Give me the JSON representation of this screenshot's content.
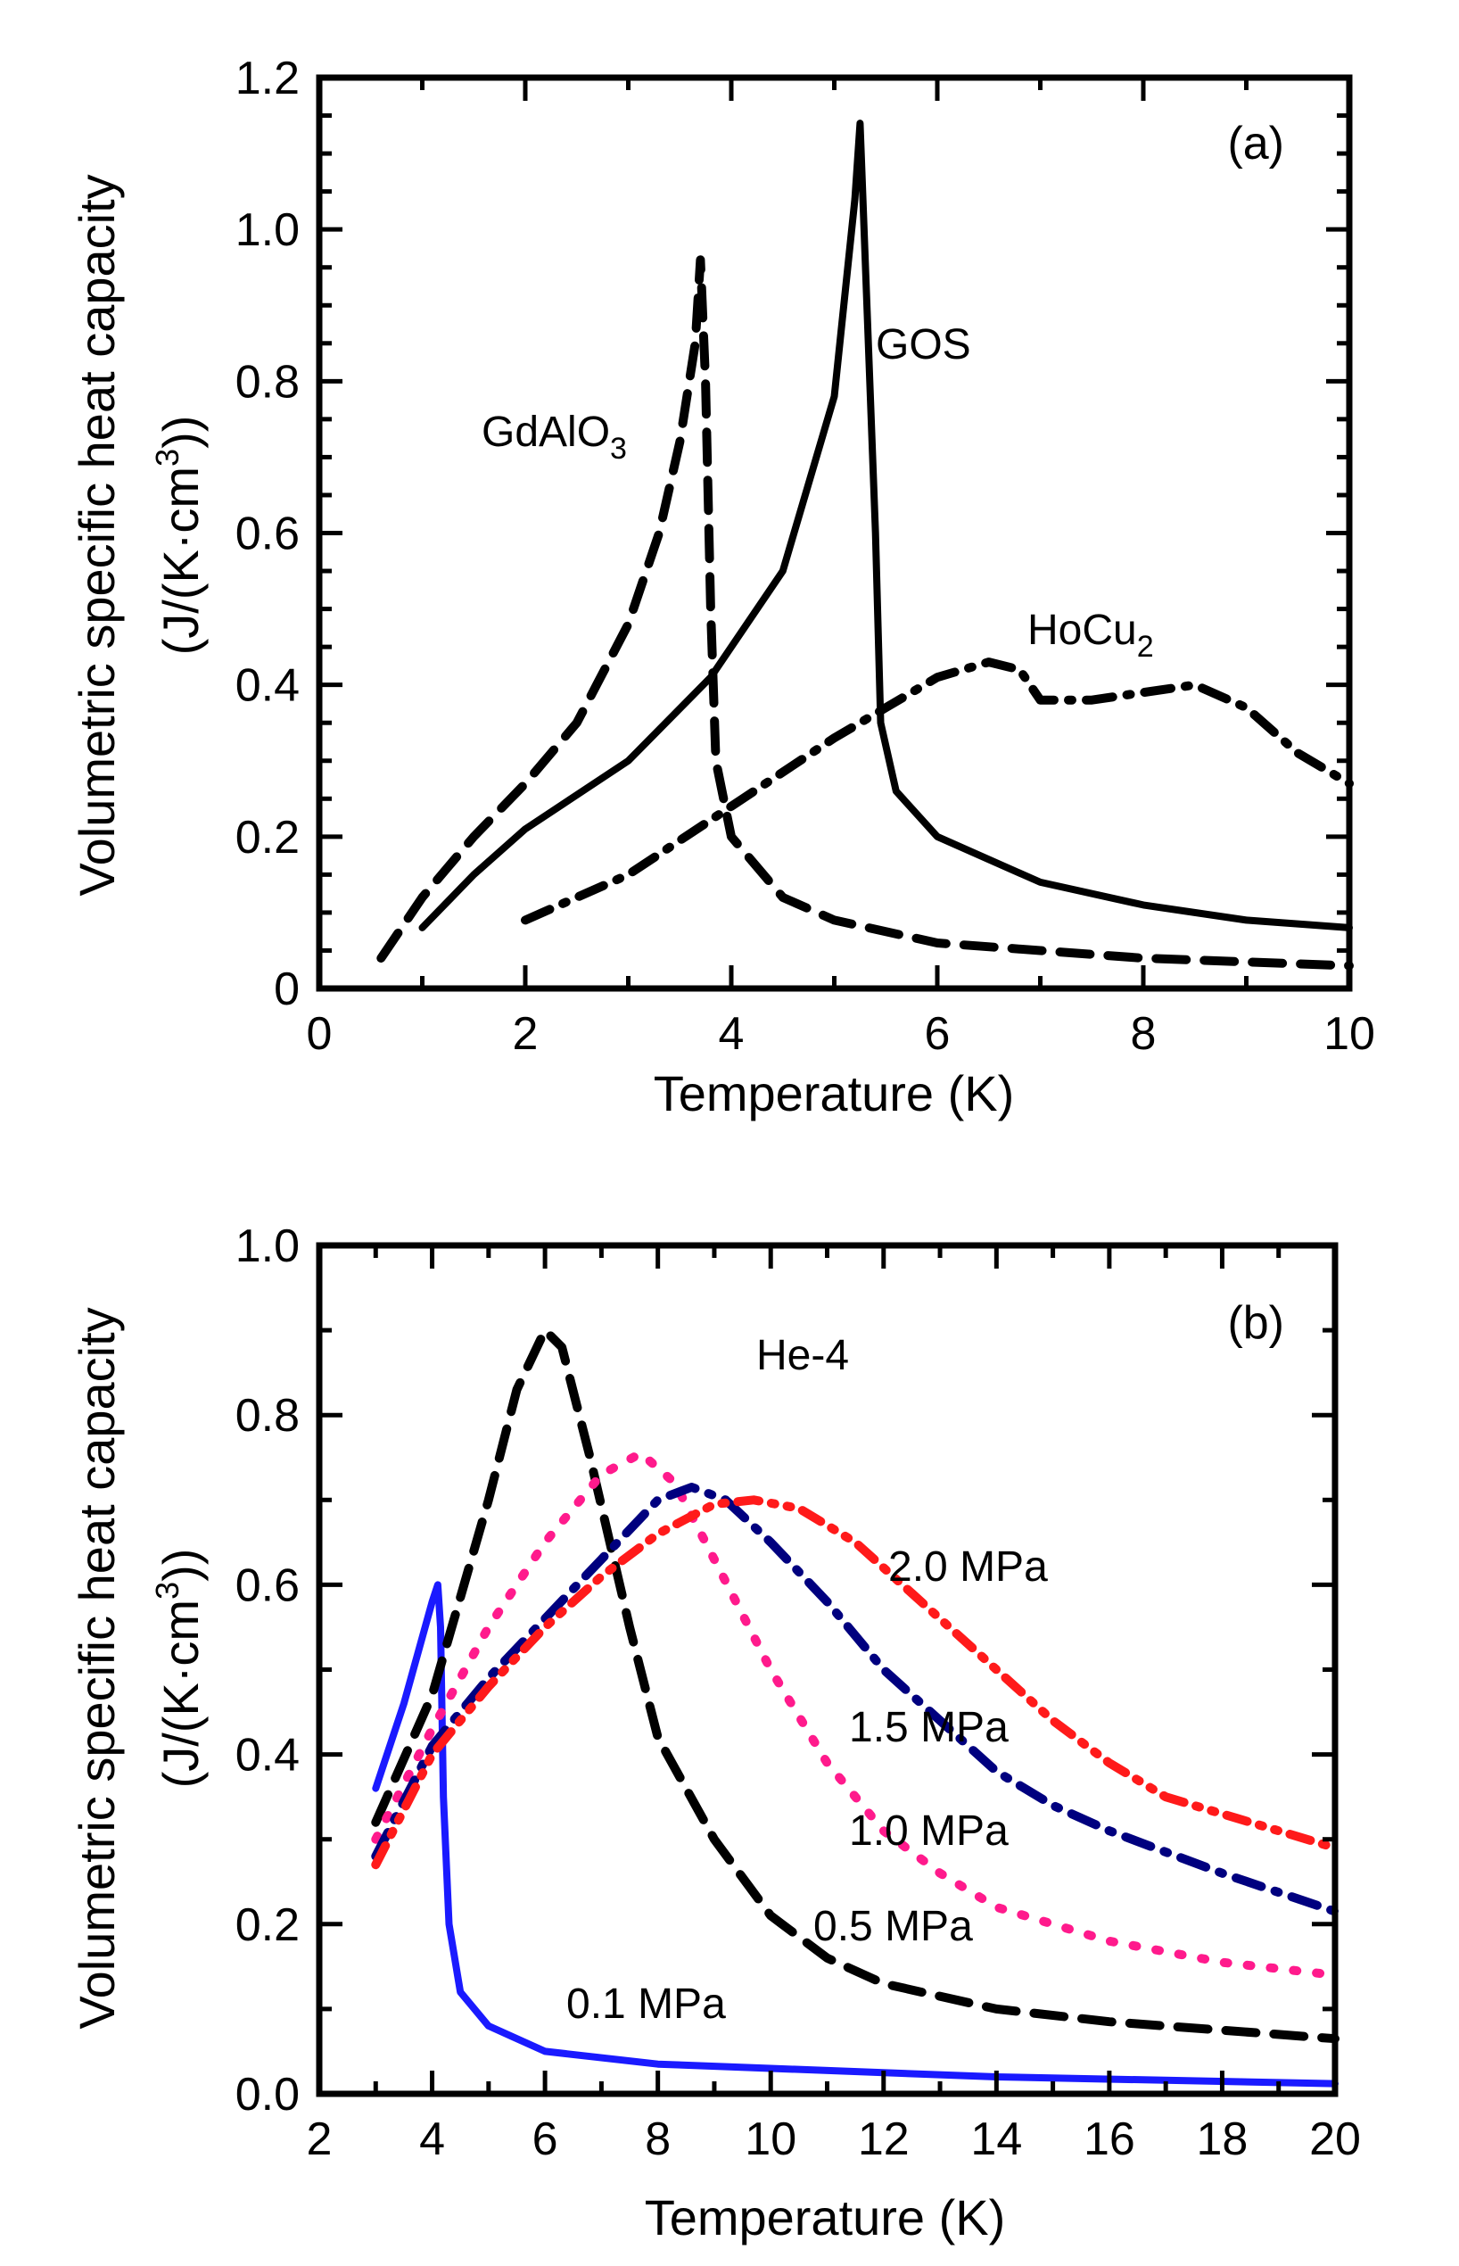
{
  "chart_data": [
    {
      "type": "line",
      "panel_label": "(a)",
      "title": "",
      "xlabel": "Temperature (K)",
      "ylabel_line1": "Volumetric specific heat capacity",
      "ylabel_line2": "(J/(K·cm",
      "ylabel_sup": "3",
      "ylabel_end": "))",
      "xlim": [
        0,
        10
      ],
      "ylim": [
        0,
        1.2
      ],
      "xticks": [
        0,
        2,
        4,
        6,
        8,
        10
      ],
      "xtick_labels": [
        "0",
        "2",
        "4",
        "6",
        "8",
        "10"
      ],
      "yticks": [
        0,
        0.2,
        0.4,
        0.6,
        0.8,
        1.0,
        1.2
      ],
      "ytick_labels": [
        "0",
        "0.2",
        "0.4",
        "0.6",
        "0.8",
        "1.0",
        "1.2"
      ],
      "grid": false,
      "legend": "inline annotations",
      "series": [
        {
          "name": "GdAlO3",
          "label_main": "GdAlO",
          "label_sub": "3",
          "color": "#000000",
          "style": "dashed",
          "x": [
            0.6,
            1.0,
            1.5,
            2.0,
            2.5,
            3.0,
            3.3,
            3.5,
            3.65,
            3.7,
            3.75,
            3.8,
            3.85,
            4.0,
            4.5,
            5.0,
            6.0,
            7.0,
            8.0,
            10.0
          ],
          "y": [
            0.04,
            0.12,
            0.2,
            0.27,
            0.35,
            0.48,
            0.6,
            0.72,
            0.85,
            0.96,
            0.8,
            0.5,
            0.3,
            0.2,
            0.12,
            0.09,
            0.06,
            0.05,
            0.04,
            0.03
          ]
        },
        {
          "name": "GOS",
          "label_main": "GOS",
          "label_sub": "",
          "color": "#000000",
          "style": "solid",
          "x": [
            1.0,
            1.5,
            2.0,
            3.0,
            3.8,
            4.5,
            5.0,
            5.2,
            5.25,
            5.4,
            5.45,
            5.6,
            6.0,
            7.0,
            8.0,
            9.0,
            10.0
          ],
          "y": [
            0.08,
            0.15,
            0.21,
            0.3,
            0.41,
            0.55,
            0.78,
            1.04,
            1.14,
            0.6,
            0.35,
            0.26,
            0.2,
            0.14,
            0.11,
            0.09,
            0.08
          ]
        },
        {
          "name": "HoCu2",
          "label_main": "HoCu",
          "label_sub": "2",
          "color": "#000000",
          "style": "dash-dot",
          "x": [
            2.0,
            3.0,
            4.0,
            5.0,
            5.5,
            6.0,
            6.5,
            6.8,
            7.0,
            7.5,
            8.0,
            8.5,
            9.0,
            9.5,
            10.0
          ],
          "y": [
            0.09,
            0.15,
            0.24,
            0.33,
            0.37,
            0.41,
            0.43,
            0.42,
            0.38,
            0.38,
            0.39,
            0.4,
            0.37,
            0.31,
            0.27
          ]
        }
      ]
    },
    {
      "type": "line",
      "panel_label": "(b)",
      "title": "",
      "annotation": "He-4",
      "xlabel": "Temperature (K)",
      "ylabel_line1": "Volumetric specific heat capacity",
      "ylabel_line2": "(J/(K·cm",
      "ylabel_sup": "3",
      "ylabel_end": "))",
      "xlim": [
        2,
        20
      ],
      "ylim": [
        0,
        1.0
      ],
      "xticks": [
        2,
        4,
        6,
        8,
        10,
        12,
        14,
        16,
        18,
        20
      ],
      "xtick_labels": [
        "2",
        "4",
        "6",
        "8",
        "10",
        "12",
        "14",
        "16",
        "18",
        "20"
      ],
      "yticks": [
        0,
        0.2,
        0.4,
        0.6,
        0.8,
        1.0
      ],
      "ytick_labels": [
        "0.0",
        "0.2",
        "0.4",
        "0.6",
        "0.8",
        "1.0"
      ],
      "grid": false,
      "legend": "inline annotations",
      "series": [
        {
          "name": "0.1 MPa",
          "color": "#1a1aff",
          "style": "solid",
          "x": [
            3.0,
            3.5,
            4.0,
            4.1,
            4.15,
            4.2,
            4.3,
            4.5,
            5.0,
            6.0,
            8.0,
            10.0,
            14.0,
            20.0
          ],
          "y": [
            0.36,
            0.46,
            0.58,
            0.6,
            0.55,
            0.35,
            0.2,
            0.12,
            0.08,
            0.05,
            0.035,
            0.03,
            0.02,
            0.012
          ]
        },
        {
          "name": "0.5 MPa",
          "color": "#000000",
          "style": "dashed",
          "x": [
            3.0,
            4.0,
            5.0,
            5.5,
            6.0,
            6.3,
            6.8,
            7.5,
            8.0,
            9.0,
            10.0,
            11.0,
            12.0,
            14.0,
            16.0,
            18.0,
            20.0
          ],
          "y": [
            0.32,
            0.47,
            0.7,
            0.83,
            0.9,
            0.88,
            0.75,
            0.55,
            0.42,
            0.3,
            0.21,
            0.16,
            0.13,
            0.1,
            0.085,
            0.075,
            0.065
          ]
        },
        {
          "name": "1.0 MPa",
          "color": "#ff1a8c",
          "style": "dotted",
          "x": [
            3.0,
            4.0,
            5.0,
            6.0,
            7.0,
            7.7,
            8.3,
            9.0,
            10.0,
            11.0,
            12.0,
            13.0,
            14.0,
            16.0,
            18.0,
            20.0
          ],
          "y": [
            0.3,
            0.43,
            0.55,
            0.65,
            0.73,
            0.755,
            0.72,
            0.63,
            0.5,
            0.39,
            0.31,
            0.26,
            0.22,
            0.18,
            0.155,
            0.14
          ]
        },
        {
          "name": "1.5 MPa",
          "color": "#00007f",
          "style": "dash-dot",
          "x": [
            3.0,
            4.0,
            5.0,
            6.0,
            7.0,
            8.0,
            8.6,
            9.2,
            10.0,
            11.0,
            12.0,
            13.0,
            14.0,
            15.0,
            16.0,
            18.0,
            20.0
          ],
          "y": [
            0.28,
            0.41,
            0.49,
            0.56,
            0.63,
            0.7,
            0.715,
            0.7,
            0.65,
            0.58,
            0.5,
            0.44,
            0.38,
            0.34,
            0.31,
            0.26,
            0.215
          ]
        },
        {
          "name": "2.0 MPa",
          "color": "#ff1a1a",
          "style": "dash-dot-dot",
          "x": [
            3.0,
            4.0,
            5.0,
            6.0,
            7.0,
            8.0,
            9.0,
            9.7,
            10.5,
            11.5,
            12.5,
            14.0,
            15.0,
            16.0,
            17.0,
            18.0,
            19.0,
            20.0
          ],
          "y": [
            0.27,
            0.4,
            0.48,
            0.55,
            0.61,
            0.66,
            0.695,
            0.7,
            0.69,
            0.65,
            0.59,
            0.5,
            0.44,
            0.39,
            0.35,
            0.33,
            0.31,
            0.29
          ]
        }
      ]
    }
  ]
}
